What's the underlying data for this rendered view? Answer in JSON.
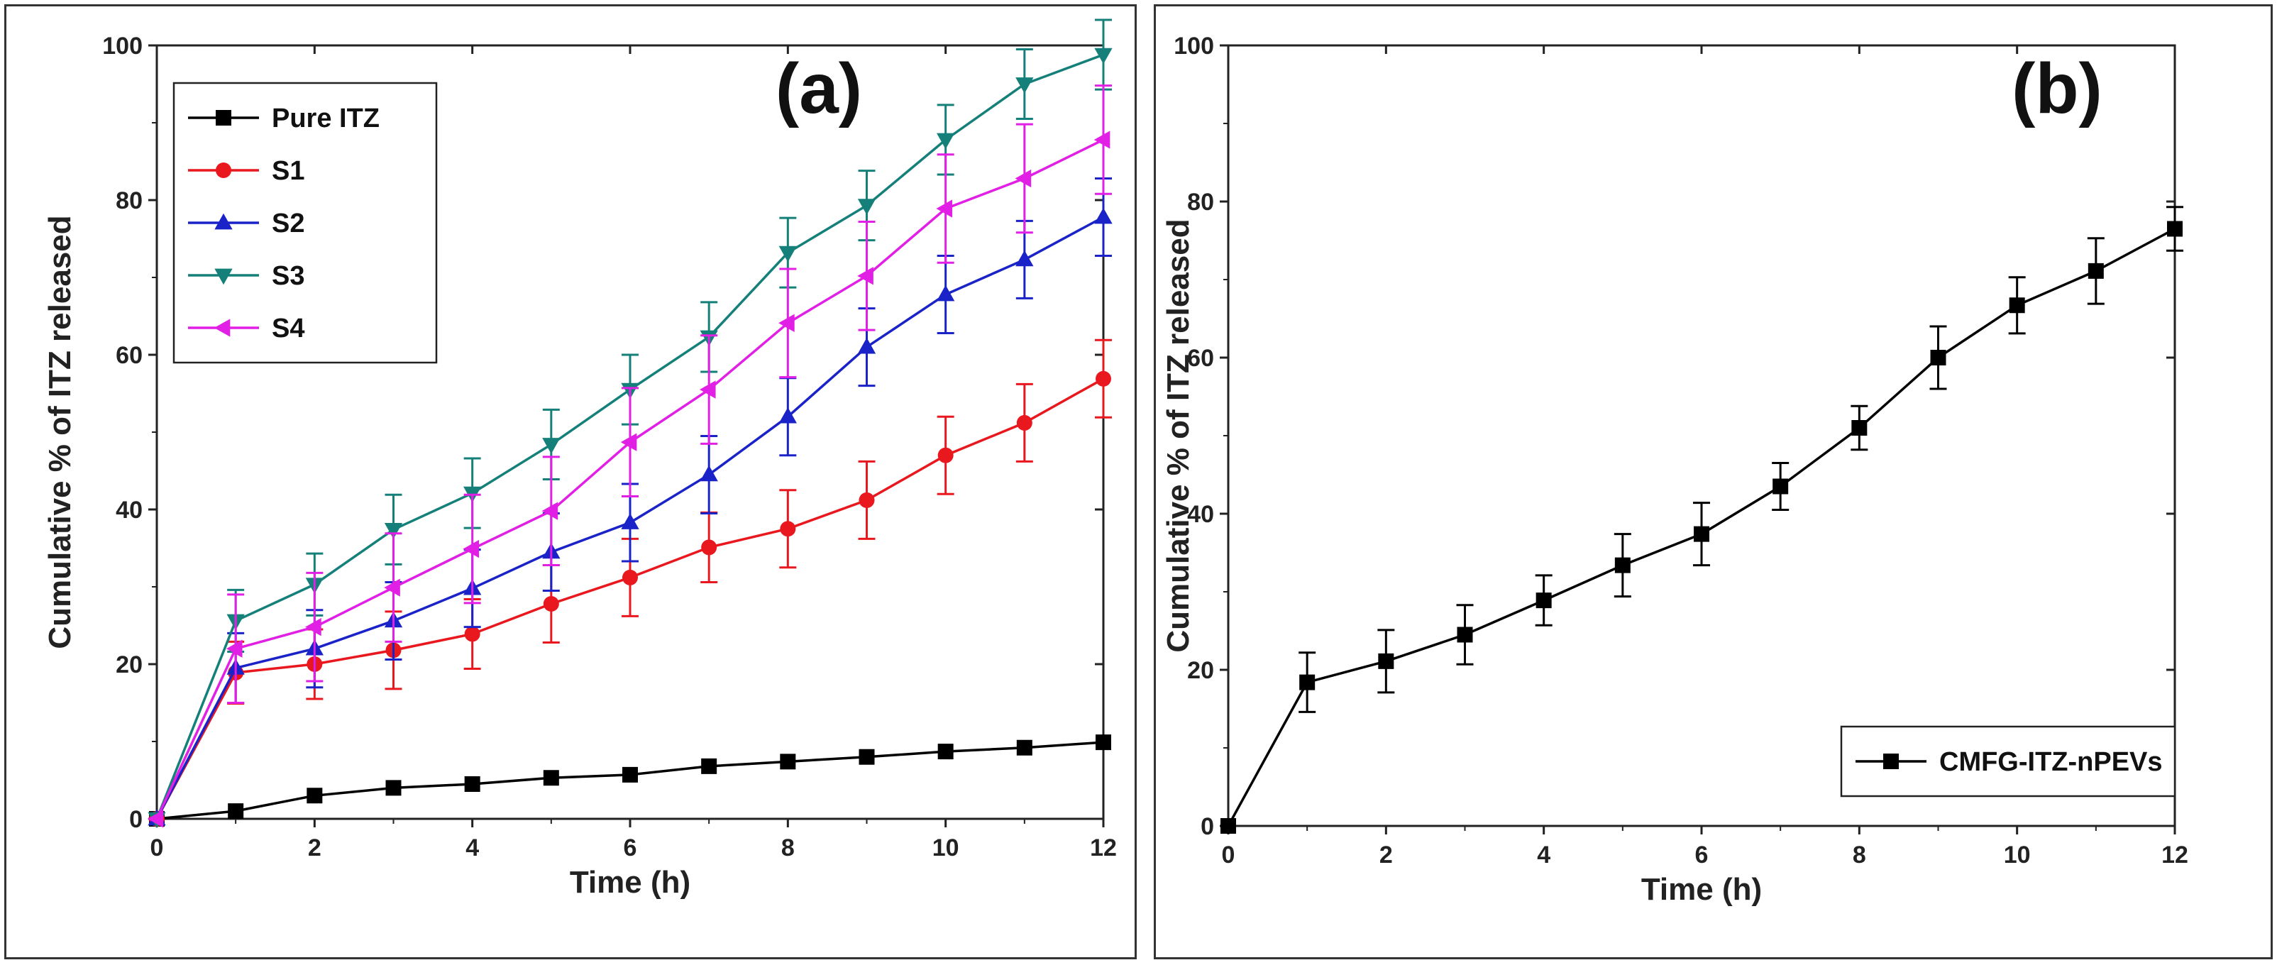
{
  "chart_data": [
    {
      "type": "line",
      "panel_label": "(a)",
      "xlabel": "Time (h)",
      "ylabel": "Cumulative % of ITZ released",
      "xlim": [
        0,
        12
      ],
      "ylim": [
        0,
        100
      ],
      "x_ticks": [
        0,
        2,
        4,
        6,
        8,
        10,
        12
      ],
      "y_ticks": [
        0,
        20,
        40,
        60,
        80,
        100
      ],
      "grid": false,
      "legend": "top-left",
      "x": [
        0,
        1,
        2,
        3,
        4,
        5,
        6,
        7,
        8,
        9,
        10,
        11,
        12
      ],
      "series": [
        {
          "name": "Pure ITZ",
          "color": "#000000",
          "marker": "square",
          "values": [
            0,
            1.0,
            3.0,
            4.0,
            4.5,
            5.3,
            5.7,
            6.8,
            7.4,
            8.0,
            8.7,
            9.2,
            9.9
          ],
          "errors": [
            0,
            0,
            0,
            0,
            0,
            0,
            0,
            0,
            0,
            0,
            0,
            0,
            0
          ]
        },
        {
          "name": "S1",
          "color": "#e8181e",
          "marker": "circle",
          "values": [
            0,
            18.9,
            20.0,
            21.8,
            23.9,
            27.8,
            31.2,
            35.1,
            37.5,
            41.2,
            47.0,
            51.2,
            56.9
          ],
          "errors": [
            0,
            4,
            4.5,
            5,
            4.5,
            5,
            5,
            4.5,
            5,
            5,
            5,
            5,
            5
          ]
        },
        {
          "name": "S2",
          "color": "#1a23c8",
          "marker": "triangle-up",
          "values": [
            0,
            19.5,
            22.0,
            25.6,
            29.8,
            34.5,
            38.3,
            44.5,
            52.0,
            61.0,
            67.8,
            72.3,
            77.8
          ],
          "errors": [
            0,
            4.5,
            5,
            5,
            5,
            5,
            5,
            5,
            5,
            5,
            5,
            5,
            5
          ]
        },
        {
          "name": "S3",
          "color": "#15807a",
          "marker": "triangle-down",
          "values": [
            0,
            25.6,
            30.3,
            37.4,
            42.1,
            48.4,
            55.5,
            62.3,
            73.2,
            79.3,
            87.8,
            95.0,
            98.8
          ],
          "errors": [
            0,
            4,
            4,
            4.5,
            4.5,
            4.5,
            4.5,
            4.5,
            4.5,
            4.5,
            4.5,
            4.5,
            4.5
          ]
        },
        {
          "name": "S4",
          "color": "#e11fe5",
          "marker": "triangle-left",
          "values": [
            0,
            22.0,
            24.8,
            29.9,
            34.9,
            39.8,
            48.7,
            55.5,
            64.1,
            70.2,
            78.9,
            82.8,
            87.8
          ],
          "errors": [
            0,
            7,
            7,
            7,
            7,
            7,
            7,
            7,
            7,
            7,
            7,
            7,
            7
          ]
        }
      ]
    },
    {
      "type": "line",
      "panel_label": "(b)",
      "xlabel": "Time (h)",
      "ylabel": "Cumulative % of ITZ released",
      "xlim": [
        0,
        12
      ],
      "ylim": [
        0,
        100
      ],
      "x_ticks": [
        0,
        2,
        4,
        6,
        8,
        10,
        12
      ],
      "y_ticks": [
        0,
        20,
        40,
        60,
        80,
        100
      ],
      "grid": false,
      "legend": "bottom-right",
      "x": [
        0,
        1,
        2,
        3,
        4,
        5,
        6,
        7,
        8,
        9,
        10,
        11,
        12
      ],
      "series": [
        {
          "name": "CMFG-ITZ-nPEVs",
          "color": "#000000",
          "marker": "square",
          "values": [
            0,
            18.4,
            21.1,
            24.5,
            28.9,
            33.4,
            37.4,
            43.5,
            51.0,
            60.0,
            66.7,
            71.1,
            76.5
          ],
          "errors": [
            0,
            3.8,
            4,
            3.8,
            3.2,
            4,
            4,
            3,
            2.8,
            4,
            3.6,
            4.2,
            2.8
          ]
        }
      ]
    }
  ]
}
